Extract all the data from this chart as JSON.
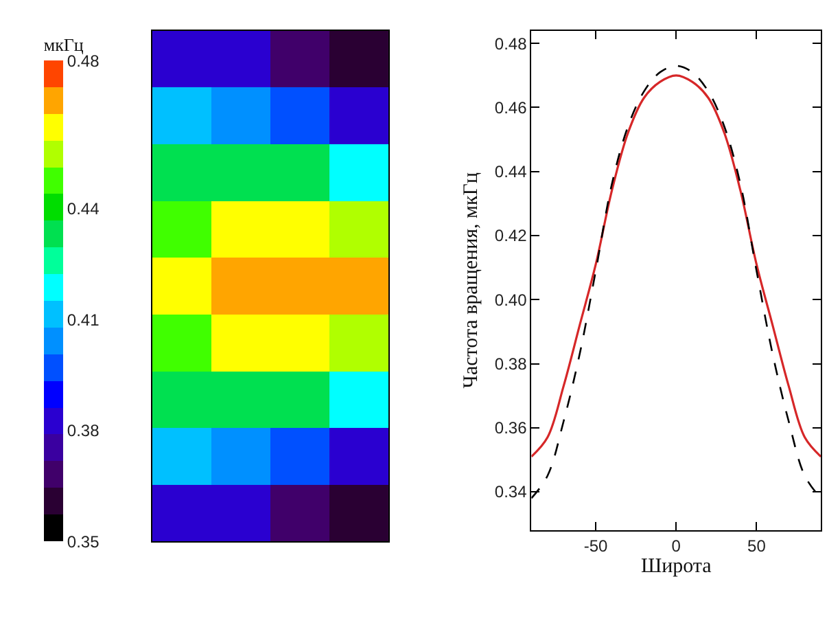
{
  "chart_data": [
    {
      "type": "heatmap",
      "clabel": "мкГц",
      "clim": [
        0.35,
        0.48
      ],
      "cticks": [
        0.35,
        0.38,
        0.41,
        0.44,
        0.48
      ],
      "categories": [
        null,
        null,
        null,
        null
      ],
      "y_categories": [
        null,
        null,
        null,
        null,
        null,
        null,
        null,
        null,
        null
      ],
      "cells": [
        [
          0.385,
          0.38,
          0.37,
          0.36
        ],
        [
          0.41,
          0.405,
          0.395,
          0.385
        ],
        [
          0.43,
          0.435,
          0.43,
          0.42
        ],
        [
          0.445,
          0.46,
          0.46,
          0.455
        ],
        [
          0.46,
          0.472,
          0.472,
          0.467
        ],
        [
          0.445,
          0.46,
          0.46,
          0.455
        ],
        [
          0.43,
          0.435,
          0.43,
          0.42
        ],
        [
          0.41,
          0.405,
          0.395,
          0.385
        ],
        [
          0.385,
          0.38,
          0.37,
          0.36
        ]
      ]
    },
    {
      "type": "line",
      "xlabel": "Широта",
      "ylabel": "Частота вращения, мкГц",
      "x": [
        -90,
        -80,
        -70,
        -60,
        -50,
        -40,
        -30,
        -20,
        -10,
        0,
        10,
        20,
        30,
        40,
        50,
        60,
        70,
        80,
        90
      ],
      "xlim": [
        -90,
        90
      ],
      "xticks": [
        -50,
        0,
        50
      ],
      "ylim": [
        0.328,
        0.484
      ],
      "yticks": [
        0.34,
        0.36,
        0.38,
        {
          "value": 0.4,
          "label": "0.40"
        },
        0.42,
        0.44,
        0.46,
        0.48
      ],
      "series": [
        {
          "color": "#d62728",
          "line_style": "solid",
          "values": [
            0.351,
            0.357,
            0.373,
            0.392,
            0.411,
            0.434,
            0.452,
            0.463,
            0.468,
            0.47,
            0.468,
            0.463,
            0.452,
            0.434,
            0.411,
            0.392,
            0.373,
            0.357,
            0.351
          ]
        },
        {
          "color": "#000000",
          "line_style": "dashed",
          "values": [
            0.338,
            0.345,
            0.362,
            0.383,
            0.409,
            0.436,
            0.454,
            0.465,
            0.471,
            0.473,
            0.471,
            0.465,
            0.454,
            0.436,
            0.409,
            0.383,
            0.362,
            0.345,
            0.338
          ]
        }
      ]
    }
  ]
}
